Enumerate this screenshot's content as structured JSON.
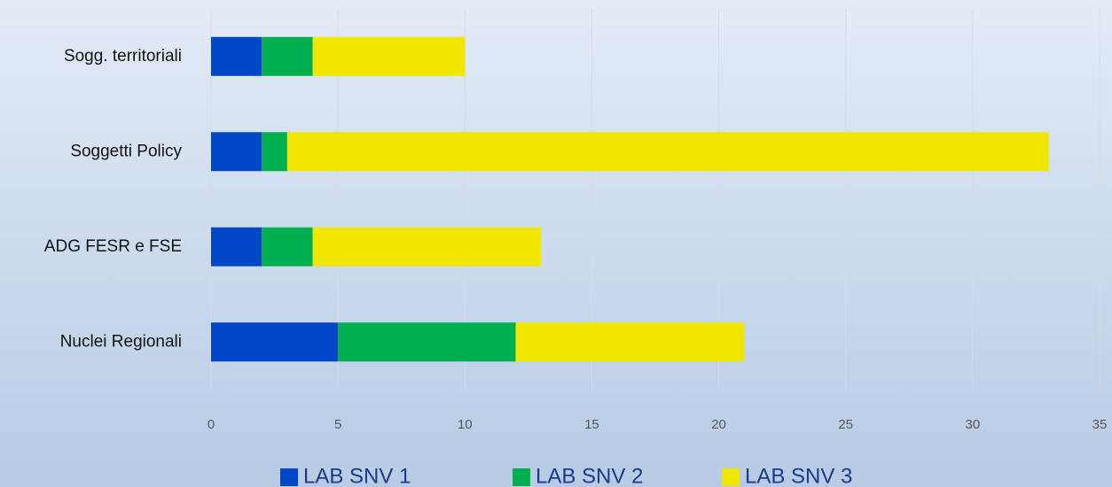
{
  "chart_data": {
    "type": "stacked_barh",
    "categories": [
      "Sogg. territoriali",
      "Soggetti Policy",
      "ADG FESR e FSE",
      "Nuclei Regionali"
    ],
    "series": [
      {
        "name": "LAB SNV 1",
        "color": "#0047c8",
        "values": [
          2,
          2,
          2,
          5
        ]
      },
      {
        "name": "LAB SNV 2",
        "color": "#00b050",
        "values": [
          2,
          1,
          2,
          7
        ]
      },
      {
        "name": "LAB SNV 3",
        "color": "#f0e600",
        "values": [
          6,
          30,
          9,
          9
        ]
      }
    ],
    "xlim": [
      0,
      35
    ],
    "xticks": [
      0,
      5,
      10,
      15,
      20,
      25,
      30,
      35
    ],
    "grid": true,
    "legend": "bottom"
  }
}
